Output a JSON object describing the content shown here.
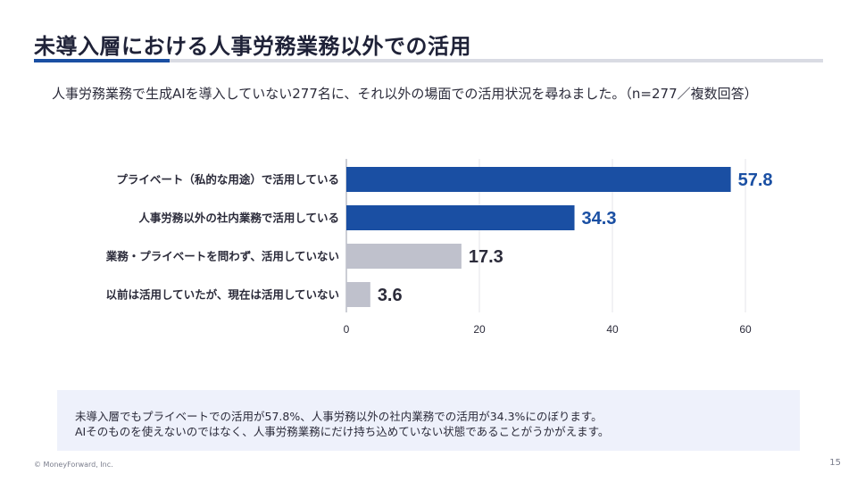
{
  "slide": {
    "title": "未導入層における人事労務業務以外での活用",
    "lead": "人事労務業務で生成AIを導入していない277名に、それ以外の場面での活用状況を尋ねました。（n=277／複数回答）",
    "summary_lines": [
      "未導入層でもプライベートでの活用が57.8%、人事労務以外の社内業務での活用が34.3%にのぼります。",
      "AIそのものを使えないのではなく、人事労務業務にだけ持ち込めていない状態であることがうかがえます。"
    ],
    "copyright": "© MoneyForward, Inc.",
    "page_number": "15"
  },
  "colors": {
    "accent": "#1a4fa3",
    "bar_primary": "#1a4fa3",
    "bar_secondary": "#bfc1cc",
    "value_primary": "#1a4fa3",
    "value_secondary": "#2b2b3a",
    "rule": "#d9dbe3"
  },
  "chart_data": {
    "type": "bar",
    "orientation": "horizontal",
    "categories": [
      "プライベート（私的な用途）で活用している",
      "人事労務以外の社内業務で活用している",
      "業務・プライベートを問わず、活用していない",
      "以前は活用していたが、現在は活用していない"
    ],
    "values": [
      57.8,
      34.3,
      17.3,
      3.6
    ],
    "value_labels": [
      "57.8",
      "34.3",
      "17.3",
      "3.6"
    ],
    "highlight": [
      true,
      true,
      false,
      false
    ],
    "xlim": [
      0,
      60
    ],
    "xticks": [
      0,
      20,
      40,
      60
    ],
    "grid": true
  }
}
